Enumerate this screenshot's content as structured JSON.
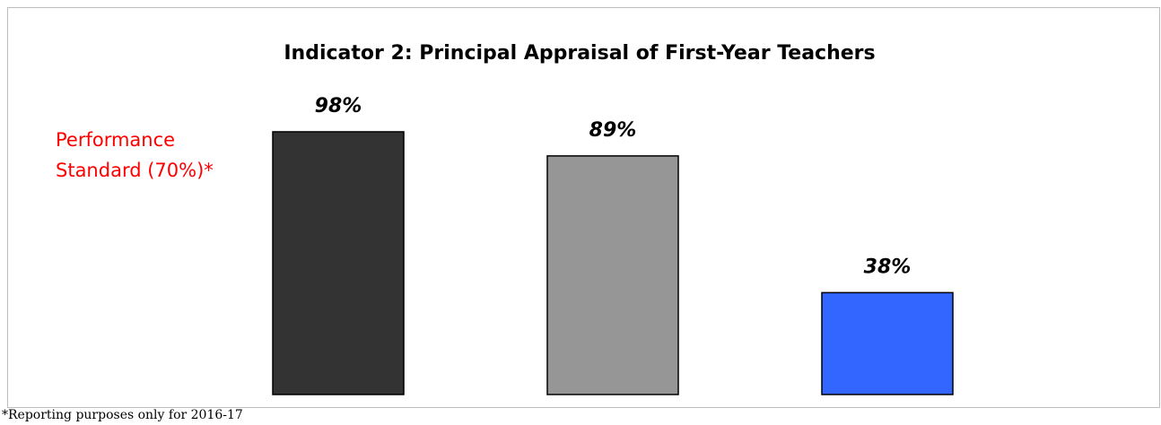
{
  "chart_data": {
    "type": "bar",
    "title": "Indicator 2: Principal Appraisal of First-Year Teachers",
    "categories": [
      null,
      null,
      null
    ],
    "values": [
      98,
      89,
      38
    ],
    "value_labels": [
      "98%",
      "89%",
      "38%"
    ],
    "colors": [
      "#333333",
      "#969696",
      "#3366ff"
    ],
    "ylim": [
      0,
      100
    ],
    "annotation": "Performance Standard (70%)*",
    "footnote": "*Reporting purposes only for 2016-17"
  }
}
